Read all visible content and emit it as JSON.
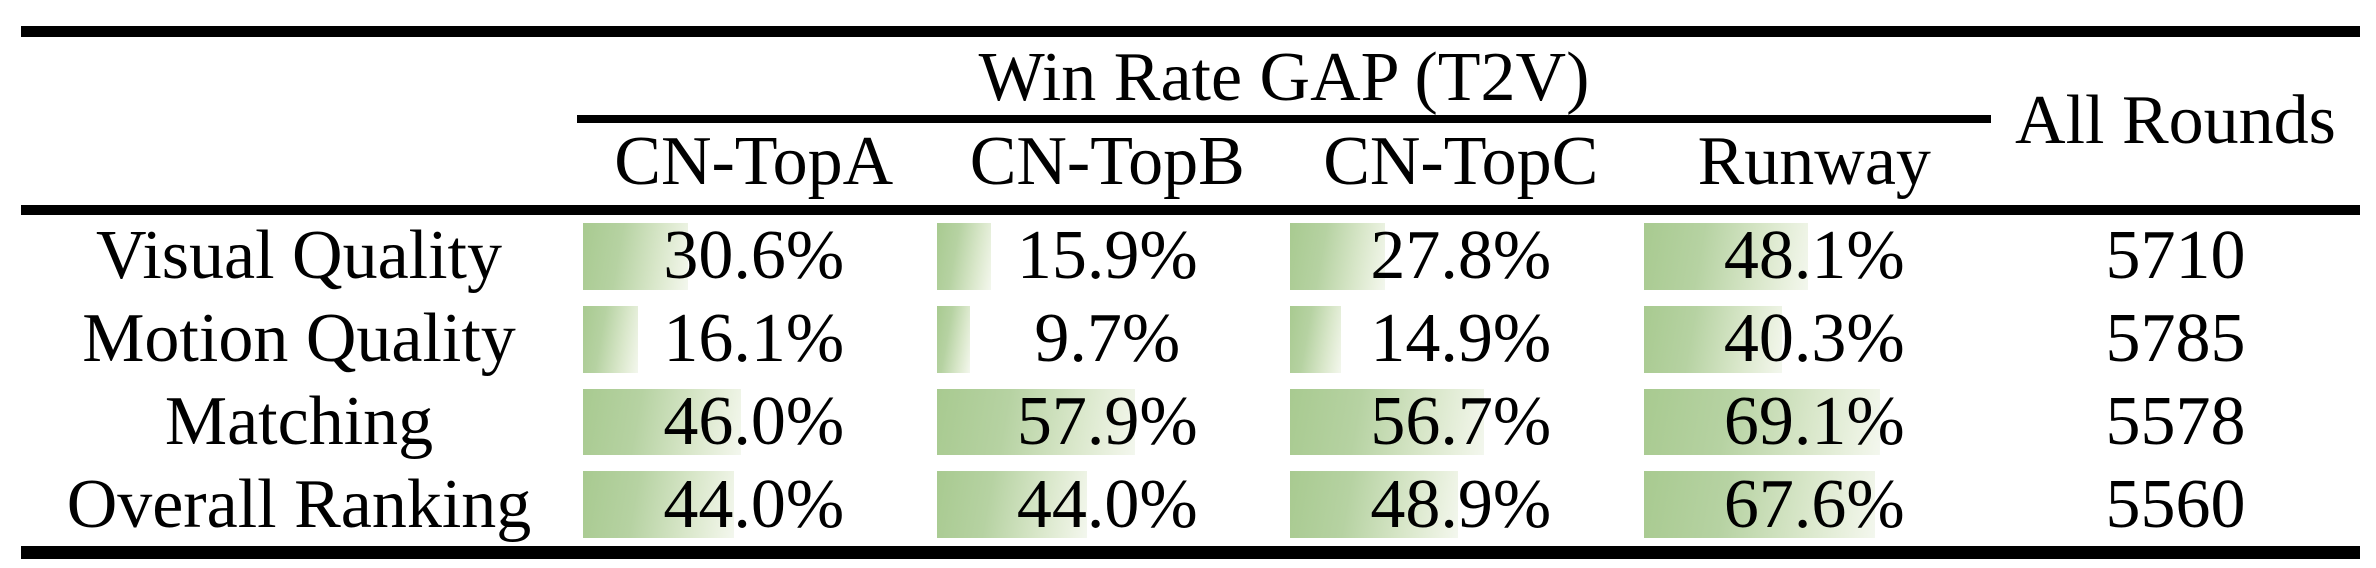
{
  "table": {
    "group_header": "Win Rate GAP (T2V)",
    "all_rounds_header": "All Rounds",
    "columns": [
      "CN-TopA",
      "CN-TopB",
      "CN-TopC",
      "Runway"
    ],
    "rows": [
      {
        "label": "Visual Quality",
        "values": [
          30.6,
          15.9,
          27.8,
          48.1
        ],
        "display": [
          "30.6%",
          "15.9%",
          "27.8%",
          "48.1%"
        ],
        "all_rounds": "5710"
      },
      {
        "label": "Motion Quality",
        "values": [
          16.1,
          9.7,
          14.9,
          40.3
        ],
        "display": [
          "16.1%",
          "9.7%",
          "14.9%",
          "40.3%"
        ],
        "all_rounds": "5785"
      },
      {
        "label": "Matching",
        "values": [
          46.0,
          57.9,
          56.7,
          69.1
        ],
        "display": [
          "46.0%",
          "57.9%",
          "56.7%",
          "69.1%"
        ],
        "all_rounds": "5578"
      },
      {
        "label": "Overall Ranking",
        "values": [
          44.0,
          44.0,
          48.9,
          67.6
        ],
        "display": [
          "44.0%",
          "44.0%",
          "48.9%",
          "67.6%"
        ],
        "all_rounds": "5560"
      }
    ],
    "colors": {
      "rule": "#000000",
      "text": "#000000",
      "bar_gradient_start": "#a8ca90",
      "bar_gradient_end": "#f3f7ee"
    }
  },
  "chart_data": {
    "type": "table",
    "title": "Win Rate GAP (T2V)",
    "columns": [
      "",
      "CN-TopA",
      "CN-TopB",
      "CN-TopC",
      "Runway",
      "All Rounds"
    ],
    "rows": [
      [
        "Visual Quality",
        "30.6%",
        "15.9%",
        "27.8%",
        "48.1%",
        "5710"
      ],
      [
        "Motion Quality",
        "16.1%",
        "9.7%",
        "14.9%",
        "40.3%",
        "5785"
      ],
      [
        "Matching",
        "46.0%",
        "57.9%",
        "56.7%",
        "69.1%",
        "5578"
      ],
      [
        "Overall Ranking",
        "44.0%",
        "44.0%",
        "48.9%",
        "67.6%",
        "5560"
      ]
    ],
    "bar_values_percent": {
      "CN-TopA": [
        30.6,
        16.1,
        46.0,
        44.0
      ],
      "CN-TopB": [
        15.9,
        9.7,
        57.9,
        44.0
      ],
      "CN-TopC": [
        27.8,
        14.9,
        56.7,
        48.9
      ],
      "Runway": [
        48.1,
        40.3,
        69.1,
        67.6
      ]
    },
    "notes": "Green in-cell data bars with horizontal gradient, width proportional to win-rate percentage (100% = full cell width)"
  }
}
